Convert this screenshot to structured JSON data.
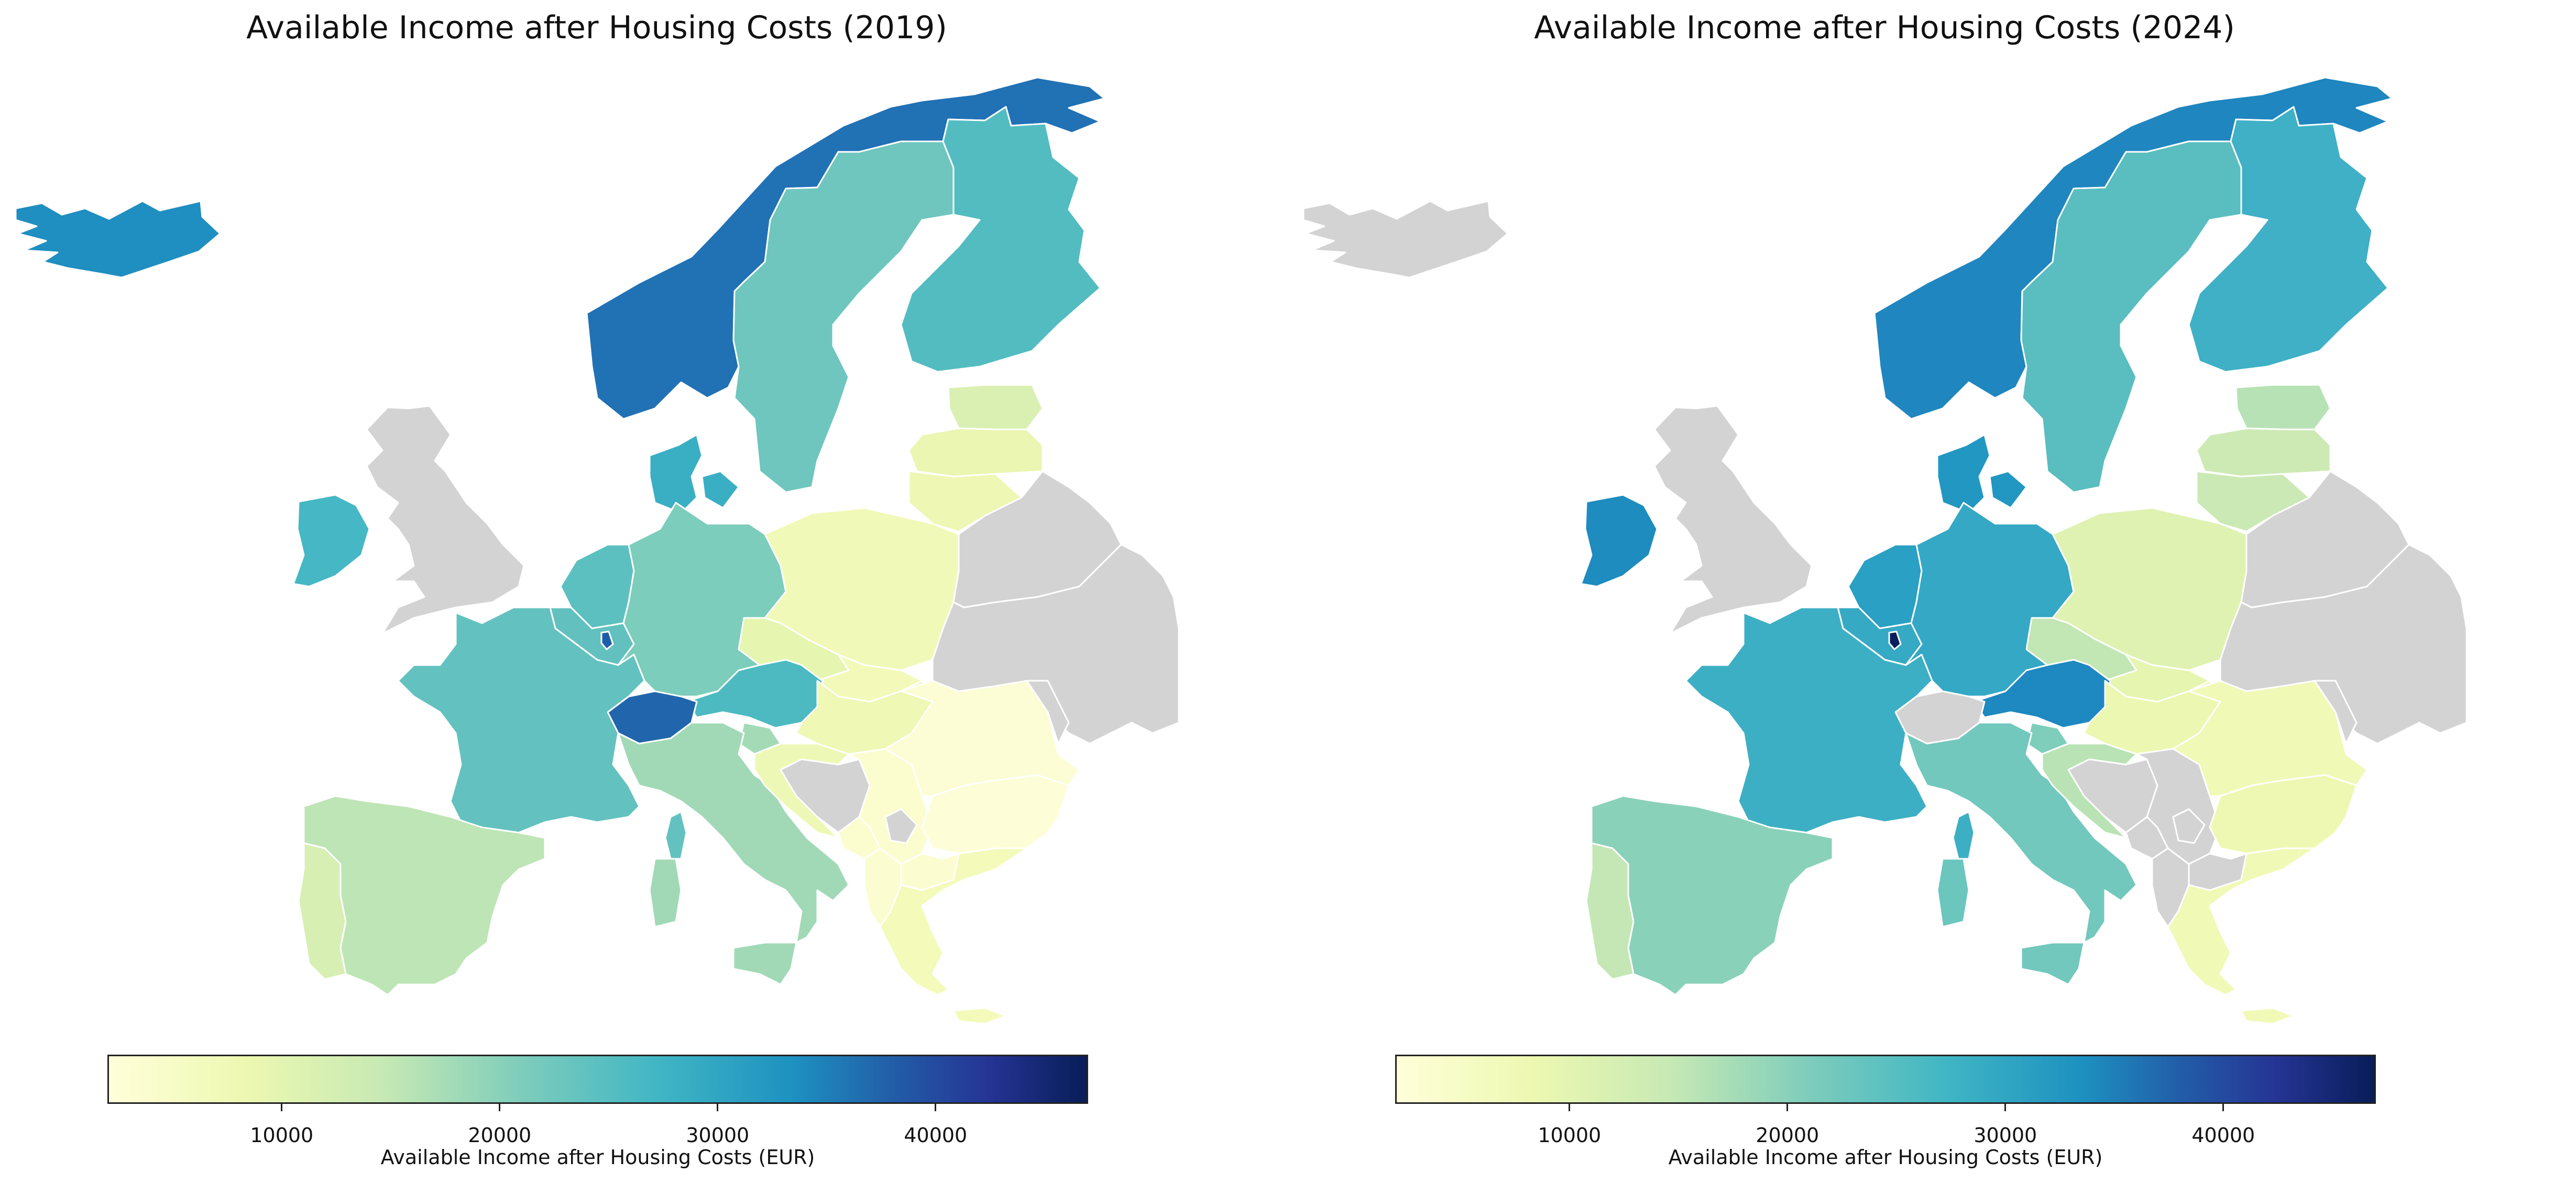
{
  "colorbar": {
    "label": "Available Income after Housing Costs (EUR)",
    "min": 2000,
    "max": 47000,
    "ticks": [
      10000,
      20000,
      30000,
      40000
    ],
    "tick_labels": [
      "10000",
      "20000",
      "30000",
      "40000"
    ],
    "colormap": "YlGnBu",
    "no_data_color": "#d3d3d3"
  },
  "maps": [
    {
      "title": "Available Income after Housing Costs (2019)",
      "fills": {
        "iceland": "#1f8ec0",
        "norway": "#2171b5",
        "sweden": "#6fc6be",
        "finland": "#52bcc1",
        "estonia": "#d9f0b2",
        "latvia": "#eaf6b1",
        "lithuania": "#eef7b3",
        "ireland": "#46b7c4",
        "uk": "#d3d3d3",
        "denmark": "#3aafc4",
        "netherlands": "#5dc0c0",
        "belgium": "#62c1bf",
        "luxembourg": "#1d5eaa",
        "germany": "#7ccdbb",
        "poland": "#f1f9b8",
        "czechia": "#e6f5b0",
        "slovakia": "#f3fab9",
        "austria": "#4dbac2",
        "switzerland": "#2166ac",
        "slovenia": "#a4dbb6",
        "hungary": "#eff8b4",
        "france": "#63c2bf",
        "spain": "#bee5b5",
        "portugal": "#d7efb3",
        "italy": "#a1d9b7",
        "sardinia": "#a1d9b7",
        "corsica": "#63c2bf",
        "sicily": "#a1d9b7",
        "croatia": "#eef8b6",
        "bosnia": "#d3d3d3",
        "serbia": "#fbfdcf",
        "kosovo": "#d3d3d3",
        "montenegro": "#fbfdcf",
        "romania": "#fcfdd4",
        "bulgaria": "#fdfed7",
        "north-macedonia": "#fbfdd0",
        "albania": "#fbfdd0",
        "greece": "#f4fab9",
        "crete": "#f4fab9",
        "belarus": "#d3d3d3",
        "ukraine": "#d3d3d3",
        "moldova": "#d3d3d3"
      }
    },
    {
      "title": "Available Income after Housing Costs (2024)",
      "fills": {
        "iceland": "#d3d3d3",
        "norway": "#1f86bf",
        "sweden": "#5abdbf",
        "finland": "#3fb0c5",
        "estonia": "#b7e2b5",
        "latvia": "#cdeab4",
        "lithuania": "#cbe9b4",
        "ireland": "#1e8cbf",
        "uk": "#d3d3d3",
        "denmark": "#2197c2",
        "netherlands": "#2aa0c4",
        "belgium": "#36a9c4",
        "luxembourg": "#0b1f5c",
        "germany": "#34a8c4",
        "poland": "#dff2b2",
        "czechia": "#c2e6b4",
        "slovakia": "#e6f5b0",
        "austria": "#1e88c0",
        "switzerland": "#d3d3d3",
        "slovenia": "#7fcdbb",
        "hungary": "#ecf7b1",
        "france": "#3dafc4",
        "spain": "#8ad1ba",
        "portugal": "#c4e7b5",
        "italy": "#72c8bd",
        "sardinia": "#6bc6bd",
        "corsica": "#3dafc4",
        "sicily": "#72c8bd",
        "croatia": "#b9e3b5",
        "bosnia": "#d3d3d3",
        "serbia": "#d3d3d3",
        "kosovo": "#d3d3d3",
        "montenegro": "#d3d3d3",
        "romania": "#f0f9b6",
        "bulgaria": "#eff8b3",
        "north-macedonia": "#d3d3d3",
        "albania": "#d3d3d3",
        "greece": "#f1f9b6",
        "crete": "#f1f9b6",
        "belarus": "#d3d3d3",
        "ukraine": "#d3d3d3",
        "moldova": "#d3d3d3"
      }
    }
  ]
}
